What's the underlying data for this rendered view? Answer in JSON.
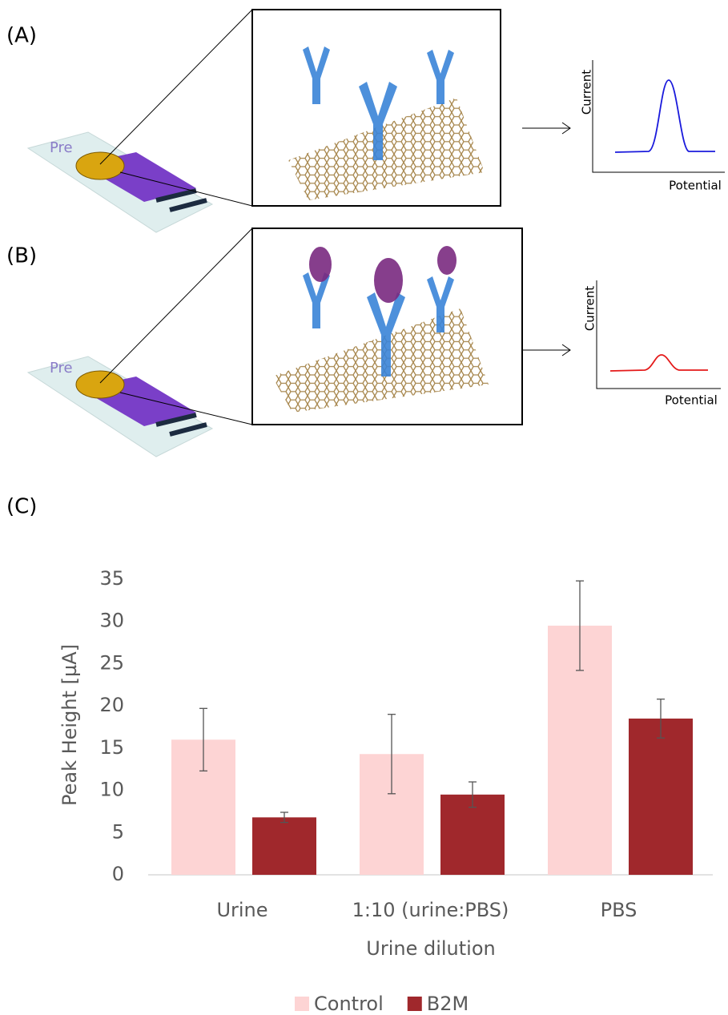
{
  "panels": [
    {
      "label": "(A)",
      "strip_text": "Pre",
      "plot": {
        "y_label": "Current",
        "x_label": "Potential"
      }
    },
    {
      "label": "(B)",
      "strip_text": "Pre",
      "plot": {
        "y_label": "Current",
        "x_label": "Potential"
      }
    }
  ],
  "chart_label": "(C)",
  "chart_data": {
    "type": "bar",
    "x_label": "Urine dilution",
    "y_label": "Peak Height  [µA]",
    "categories": [
      "Urine",
      "1:10 (urine:PBS)",
      "PBS"
    ],
    "series": [
      {
        "name": "Control",
        "color": "#fdd4d4",
        "values": [
          16,
          14.3,
          29.5
        ],
        "errors": [
          3.7,
          4.7,
          5.3
        ]
      },
      {
        "name": "B2M",
        "color": "#a0282c",
        "values": [
          6.8,
          9.5,
          18.5
        ],
        "errors": [
          0.6,
          1.5,
          2.3
        ]
      }
    ],
    "ylim": [
      0,
      35
    ],
    "yticks": [
      0,
      5,
      10,
      15,
      20,
      25,
      30,
      35
    ],
    "grid": false,
    "legend": "bottom"
  }
}
